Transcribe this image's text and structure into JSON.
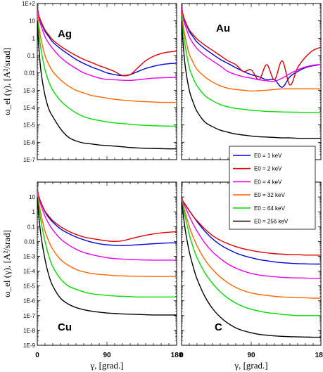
{
  "chart_data": {
    "type": "line",
    "ylabel": "ω_el (γ), [A²/srad]",
    "xlabel": "γ, [grad.]",
    "x_ticks": [
      "0",
      "90",
      "180"
    ],
    "xlim": [
      0,
      180
    ],
    "yscale": "log",
    "legend": {
      "placement": "inside right-bottom of Au panel",
      "entries": [
        {
          "label": "E0 = 1 keV",
          "energy": "1 keV",
          "color": "#0000dd"
        },
        {
          "label": "E0 = 2 keV",
          "energy": "2 keV",
          "color": "#dd0000"
        },
        {
          "label": "E0 = 4 keV",
          "energy": "4 keV",
          "color": "#ee00ee"
        },
        {
          "label": "E0 = 32 keV",
          "energy": "32 keV",
          "color": "#ff6600"
        },
        {
          "label": "E0 = 64 keV",
          "energy": "64 keV",
          "color": "#00dd00"
        },
        {
          "label": "E0 = 256 keV",
          "energy": "256 keV",
          "color": "#000000"
        }
      ]
    },
    "x": [
      0,
      2,
      5,
      10,
      15,
      20,
      30,
      40,
      50,
      60,
      70,
      80,
      90,
      100,
      110,
      120,
      130,
      140,
      150,
      160,
      170,
      180
    ],
    "panels": [
      {
        "label": "Ag",
        "ylim_exp": [
          -7,
          2
        ],
        "y_tick_labels": [
          "1E-7",
          "1E-6",
          "1E-5",
          "1E-4",
          "1E-3",
          "0.01",
          "0.1",
          "1",
          "10",
          "1E+2"
        ],
        "series": [
          {
            "energy": "1 keV",
            "values": [
              60,
              20,
              8,
              2.5,
              1.2,
              0.6,
              0.25,
              0.12,
              0.06,
              0.035,
              0.022,
              0.015,
              0.01,
              0.008,
              0.007,
              0.008,
              0.012,
              0.018,
              0.024,
              0.03,
              0.034,
              0.036
            ]
          },
          {
            "energy": "2 keV",
            "values": [
              60,
              20,
              9,
              3,
              1.5,
              0.8,
              0.35,
              0.18,
              0.1,
              0.06,
              0.04,
              0.026,
              0.018,
              0.012,
              0.007,
              0.008,
              0.02,
              0.05,
              0.09,
              0.13,
              0.16,
              0.18
            ]
          },
          {
            "energy": "4 keV",
            "values": [
              50,
              15,
              5,
              1.2,
              0.5,
              0.25,
              0.08,
              0.035,
              0.018,
              0.01,
              0.007,
              0.005,
              0.0042,
              0.004,
              0.0038,
              0.0037,
              0.004,
              0.0045,
              0.005,
              0.0052,
              0.0054,
              0.0055
            ]
          },
          {
            "energy": "32 keV",
            "values": [
              30,
              5,
              0.8,
              0.1,
              0.03,
              0.012,
              0.004,
              0.0018,
              0.001,
              0.0007,
              0.0005,
              0.00042,
              0.00035,
              0.0003,
              0.00027,
              0.00025,
              0.00023,
              0.00022,
              0.00021,
              0.0002,
              0.0002,
              0.0002
            ]
          },
          {
            "energy": "64 keV",
            "values": [
              20,
              2,
              0.2,
              0.015,
              0.003,
              0.001,
              0.00025,
              0.0001,
              5e-05,
              3e-05,
              2.2e-05,
              1.8e-05,
              1.5e-05,
              1.3e-05,
              1.2e-05,
              1.1e-05,
              1e-05,
              9.5e-06,
              9e-06,
              8.8e-06,
              8.6e-06,
              8.5e-06
            ]
          },
          {
            "energy": "256 keV",
            "values": [
              10,
              0.3,
              0.01,
              0.0005,
              8e-05,
              3e-05,
              6e-06,
              2e-06,
              1.2e-06,
              9e-07,
              8e-07,
              7e-07,
              6.5e-07,
              6e-07,
              5.5e-07,
              5e-07,
              4.7e-07,
              4.5e-07,
              4.4e-07,
              4.3e-07,
              4.2e-07,
              4.2e-07
            ]
          }
        ]
      },
      {
        "label": "Au",
        "ylim_exp": [
          -7,
          2
        ],
        "y_tick_labels": [],
        "series": [
          {
            "energy": "1 keV",
            "values": [
              60,
              20,
              8,
              2.5,
              1.2,
              0.6,
              0.25,
              0.12,
              0.06,
              0.035,
              0.02,
              0.012,
              0.008,
              0.006,
              0.004,
              0.004,
              0.0015,
              0.006,
              0.012,
              0.02,
              0.026,
              0.03
            ]
          },
          {
            "energy": "2 keV",
            "values": [
              60,
              22,
              9,
              3,
              1.6,
              0.9,
              0.4,
              0.2,
              0.1,
              0.05,
              0.03,
              0.012,
              0.015,
              0.004,
              0.03,
              0.004,
              0.05,
              0.002,
              0.02,
              0.08,
              0.2,
              0.3
            ]
          },
          {
            "energy": "4 keV",
            "values": [
              50,
              15,
              5,
              1.2,
              0.5,
              0.25,
              0.1,
              0.05,
              0.025,
              0.012,
              0.008,
              0.006,
              0.005,
              0.004,
              0.0035,
              0.0033,
              0.005,
              0.009,
              0.015,
              0.022,
              0.028,
              0.03
            ]
          },
          {
            "energy": "32 keV",
            "values": [
              30,
              6,
              1,
              0.12,
              0.04,
              0.016,
              0.006,
              0.003,
              0.0018,
              0.0013,
              0.0011,
              0.001,
              0.0009,
              0.00095,
              0.001,
              0.0011,
              0.0012,
              0.0012,
              0.0012,
              0.0012,
              0.0012,
              0.0012
            ]
          },
          {
            "energy": "64 keV",
            "values": [
              20,
              3,
              0.3,
              0.02,
              0.005,
              0.0018,
              0.0005,
              0.00025,
              0.00015,
              0.00011,
              9e-05,
              8e-05,
              7e-05,
              6.5e-05,
              6e-05,
              5.8e-05,
              5.6e-05,
              5.5e-05,
              5.4e-05,
              5.3e-05,
              5.3e-05,
              5.3e-05
            ]
          },
          {
            "energy": "256 keV",
            "values": [
              10,
              0.5,
              0.02,
              0.001,
              0.0002,
              6e-05,
              1.5e-05,
              8e-06,
              5e-06,
              3.8e-06,
              3e-06,
              2.6e-06,
              2.3e-06,
              2.1e-06,
              2e-06,
              1.9e-06,
              1.8e-06,
              1.8e-06,
              1.7e-06,
              1.7e-06,
              1.7e-06,
              1.7e-06
            ]
          }
        ]
      },
      {
        "label": "Cu",
        "ylim_exp": [
          -9,
          2
        ],
        "y_tick_labels": [
          "1E-9",
          "1E-8",
          "1E-7",
          "1E-6",
          "1E-5",
          "1E-4",
          "1E-3",
          "0.01",
          "0.1",
          "1",
          "10"
        ],
        "series": [
          {
            "energy": "1 keV",
            "values": [
              30,
              10,
              4,
              1,
              0.4,
              0.2,
              0.07,
              0.035,
              0.02,
              0.013,
              0.009,
              0.007,
              0.006,
              0.0055,
              0.0053,
              0.0055,
              0.006,
              0.0065,
              0.007,
              0.0075,
              0.008,
              0.008
            ]
          },
          {
            "energy": "2 keV",
            "values": [
              30,
              10,
              4,
              1.1,
              0.5,
              0.25,
              0.1,
              0.05,
              0.03,
              0.02,
              0.016,
              0.013,
              0.011,
              0.01,
              0.011,
              0.015,
              0.02,
              0.026,
              0.032,
              0.038,
              0.042,
              0.045
            ]
          },
          {
            "energy": "4 keV",
            "values": [
              25,
              8,
              2.5,
              0.5,
              0.15,
              0.06,
              0.015,
              0.006,
              0.003,
              0.0018,
              0.0013,
              0.001,
              0.0008,
              0.0007,
              0.00065,
              0.0006,
              0.00058,
              0.00056,
              0.00055,
              0.00055,
              0.00055,
              0.00055
            ]
          },
          {
            "energy": "32 keV",
            "values": [
              20,
              4,
              0.6,
              0.05,
              0.01,
              0.003,
              0.0006,
              0.00025,
              0.00013,
              9e-05,
              7e-05,
              6e-05,
              5.5e-05,
              5e-05,
              4.8e-05,
              4.6e-05,
              4.5e-05,
              4.4e-05,
              4.4e-05,
              4.4e-05,
              4.4e-05,
              4.4e-05
            ]
          },
          {
            "energy": "64 keV",
            "values": [
              15,
              2,
              0.2,
              0.01,
              0.001,
              0.0002,
              3e-05,
              1e-05,
              6e-06,
              4e-06,
              3e-06,
              2.6e-06,
              2.3e-06,
              2.1e-06,
              2e-06,
              1.9e-06,
              1.8e-06,
              1.8e-06,
              1.8e-06,
              1.8e-06,
              1.8e-06,
              1.8e-06
            ]
          },
          {
            "energy": "256 keV",
            "values": [
              10,
              0.5,
              0.02,
              0.0006,
              5e-05,
              1e-05,
              1.5e-06,
              6e-07,
              3.5e-07,
              2.5e-07,
              2e-07,
              1.7e-07,
              1.5e-07,
              1.4e-07,
              1.3e-07,
              1.25e-07,
              1.2e-07,
              1.15e-07,
              1.1e-07,
              1.1e-07,
              1.1e-07,
              1.1e-07
            ]
          }
        ]
      },
      {
        "label": "C",
        "ylim_exp": [
          -9,
          2
        ],
        "y_tick_labels": [],
        "series": [
          {
            "energy": "1 keV",
            "values": [
              8,
              5,
              3,
              1.2,
              0.5,
              0.22,
              0.05,
              0.015,
              0.006,
              0.003,
              0.0017,
              0.0011,
              0.0008,
              0.0006,
              0.0005,
              0.00042,
              0.00037,
              0.00034,
              0.00032,
              0.00031,
              0.0003,
              0.0003
            ]
          },
          {
            "energy": "2 keV",
            "values": [
              8,
              5,
              3,
              1.2,
              0.5,
              0.25,
              0.07,
              0.025,
              0.012,
              0.007,
              0.0045,
              0.0032,
              0.0025,
              0.002,
              0.0017,
              0.0015,
              0.0014,
              0.0013,
              0.0013,
              0.0012,
              0.0012,
              0.0012
            ]
          },
          {
            "energy": "4 keV",
            "values": [
              8,
              4,
              2,
              0.5,
              0.15,
              0.05,
              0.008,
              0.002,
              0.0007,
              0.0003,
              0.00016,
              0.0001,
              7e-05,
              5.5e-05,
              4.7e-05,
              4.2e-05,
              3.8e-05,
              3.6e-05,
              3.5e-05,
              3.4e-05,
              3.3e-05,
              3.3e-05
            ]
          },
          {
            "energy": "32 keV",
            "values": [
              7,
              3,
              0.8,
              0.1,
              0.02,
              0.005,
              0.0006,
              0.00013,
              4e-05,
              1.6e-05,
              8e-06,
              4.8e-06,
              3.4e-06,
              2.7e-06,
              2.3e-06,
              2e-06,
              1.8e-06,
              1.7e-06,
              1.6e-06,
              1.6e-06,
              1.5e-06,
              1.5e-06
            ]
          },
          {
            "energy": "64 keV",
            "values": [
              6,
              2,
              0.4,
              0.03,
              0.004,
              0.0008,
              8e-05,
              1.5e-05,
              4e-06,
              1.5e-06,
              7e-07,
              4e-07,
              2.7e-07,
              2e-07,
              1.6e-07,
              1.4e-07,
              1.2e-07,
              1.1e-07,
              1e-07,
              1e-07,
              1e-07,
              1e-07
            ]
          },
          {
            "energy": "256 keV",
            "values": [
              5,
              0.8,
              0.05,
              0.002,
              0.0002,
              3e-05,
              2e-06,
              3e-07,
              8e-08,
              3e-08,
              1.5e-08,
              9.5e-09,
              7e-09,
              5.5e-09,
              4.8e-09,
              4.3e-09,
              4e-09,
              3.8e-09,
              3.7e-09,
              3.6e-09,
              3.5e-09,
              3.5e-09
            ]
          }
        ]
      }
    ]
  }
}
